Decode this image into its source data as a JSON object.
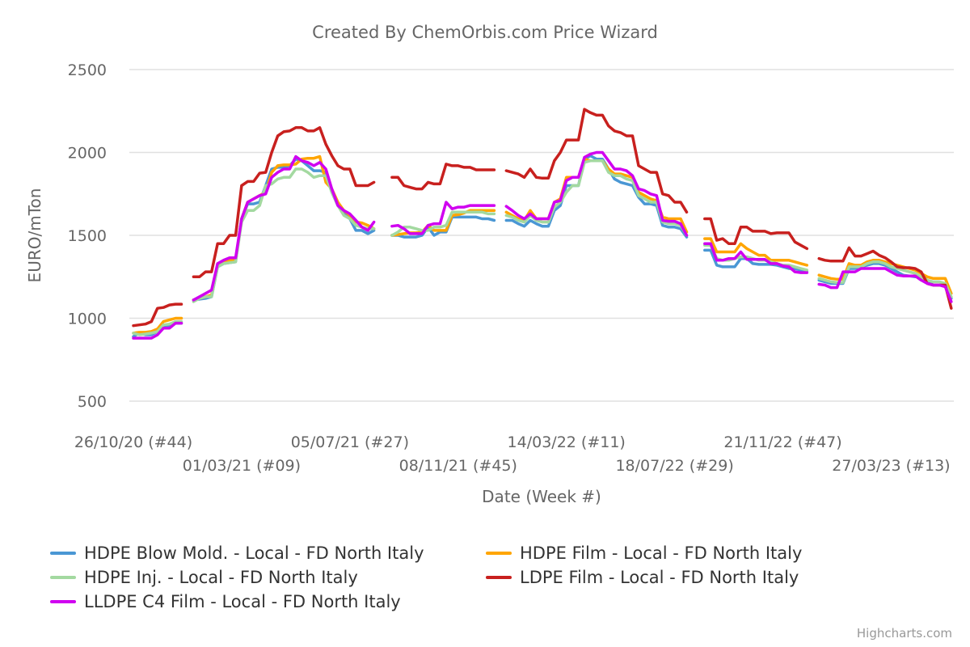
{
  "chart_data": {
    "type": "line",
    "title": "Created By ChemOrbis.com Price Wizard",
    "xlabel": "Date (Week #)",
    "ylabel": "EURO/mTon",
    "ylim": [
      500,
      2500
    ],
    "yticks": [
      500,
      1000,
      1500,
      2000,
      2500
    ],
    "grid": true,
    "x_unit": "weeks since 26/10/20",
    "xlim": [
      0,
      136
    ],
    "xticks": [
      {
        "week": 0,
        "label": "26/10/20 (#44)"
      },
      {
        "week": 18,
        "label": "01/03/21 (#09)"
      },
      {
        "week": 36,
        "label": "05/07/21 (#27)"
      },
      {
        "week": 54,
        "label": "08/11/21 (#45)"
      },
      {
        "week": 72,
        "label": "14/03/22 (#11)"
      },
      {
        "week": 90,
        "label": "18/07/22 (#29)"
      },
      {
        "week": 108,
        "label": "21/11/22 (#47)"
      },
      {
        "week": 126,
        "label": "27/03/23 (#13)"
      }
    ],
    "legend_placement": "bottom",
    "series": [
      {
        "name": "HDPE Blow Mold. - Local - FD North Italy",
        "color": "#4a97d4",
        "segments": [
          {
            "start": 0,
            "values": [
              890,
              910,
              900,
              900,
              920,
              950,
              950,
              970,
              970
            ]
          },
          {
            "start": 10,
            "values": [
              1110,
              1115,
              1120,
              1130,
              1310,
              1330,
              1335,
              1340,
              1600,
              1690,
              1690,
              1700,
              1800,
              1900,
              1910,
              1910,
              1920,
              1960,
              1950,
              1920,
              1890,
              1890,
              1880,
              1760,
              1680,
              1640,
              1600,
              1530,
              1530,
              1510,
              1530
            ]
          },
          {
            "start": 43,
            "values": [
              1500,
              1500,
              1490,
              1490,
              1490,
              1500,
              1550,
              1500,
              1520,
              1520,
              1610,
              1610,
              1610,
              1610,
              1610,
              1600,
              1600,
              1590
            ]
          },
          {
            "start": 62,
            "values": [
              1590,
              1590,
              1570,
              1555,
              1590,
              1570,
              1555,
              1555,
              1650,
              1680,
              1800,
              1800,
              1800,
              1960,
              1980,
              1960,
              1960,
              1900,
              1840,
              1820,
              1810,
              1800,
              1730,
              1690,
              1690,
              1680,
              1560,
              1550,
              1550,
              1540,
              1490
            ]
          },
          {
            "start": 95,
            "values": [
              1410,
              1410,
              1320,
              1310,
              1310,
              1310,
              1360,
              1360,
              1330,
              1325,
              1325,
              1325,
              1320,
              1310,
              1300,
              1300,
              1290,
              1280
            ]
          },
          {
            "start": 114,
            "values": [
              1230,
              1220,
              1210,
              1210,
              1210,
              1300,
              1300,
              1310,
              1320,
              1330,
              1330,
              1320,
              1300,
              1280,
              1260,
              1255,
              1250,
              1250,
              1230,
              1200,
              1200,
              1200,
              1120
            ]
          }
        ]
      },
      {
        "name": "HDPE Film - Local - FD North Italy",
        "color": "#ffa500",
        "segments": [
          {
            "start": 0,
            "values": [
              910,
              915,
              915,
              920,
              935,
              980,
              990,
              1000,
              1000
            ]
          },
          {
            "start": 10,
            "values": [
              1110,
              1120,
              1130,
              1140,
              1330,
              1340,
              1350,
              1350,
              1600,
              1700,
              1720,
              1740,
              1760,
              1880,
              1920,
              1925,
              1925,
              1930,
              1960,
              1965,
              1965,
              1975,
              1820,
              1780,
              1700,
              1650,
              1620,
              1580,
              1575,
              1560,
              1540
            ]
          },
          {
            "start": 43,
            "values": [
              1500,
              1505,
              1510,
              1515,
              1515,
              1520,
              1560,
              1530,
              1530,
              1530,
              1620,
              1625,
              1635,
              1650,
              1650,
              1650,
              1650,
              1650
            ]
          },
          {
            "start": 62,
            "values": [
              1640,
              1620,
              1600,
              1590,
              1650,
              1600,
              1600,
              1600,
              1700,
              1720,
              1850,
              1850,
              1850,
              1960,
              1950,
              1950,
              1950,
              1900,
              1870,
              1870,
              1860,
              1850,
              1760,
              1740,
              1720,
              1710,
              1610,
              1600,
              1600,
              1600,
              1520
            ]
          },
          {
            "start": 95,
            "values": [
              1480,
              1480,
              1400,
              1400,
              1400,
              1400,
              1450,
              1420,
              1400,
              1380,
              1380,
              1350,
              1350,
              1350,
              1350,
              1340,
              1330,
              1320
            ]
          },
          {
            "start": 114,
            "values": [
              1260,
              1250,
              1240,
              1235,
              1235,
              1330,
              1320,
              1320,
              1340,
              1350,
              1350,
              1340,
              1330,
              1320,
              1310,
              1300,
              1290,
              1270,
              1250,
              1240,
              1240,
              1240,
              1150
            ]
          }
        ]
      },
      {
        "name": "HDPE Inj. - Local - FD North Italy",
        "color": "#a3d9a0",
        "segments": [
          {
            "start": 0,
            "values": [
              910,
              900,
              905,
              910,
              920,
              960,
              965,
              980,
              980
            ]
          },
          {
            "start": 10,
            "values": [
              1100,
              1120,
              1130,
              1130,
              1310,
              1330,
              1335,
              1340,
              1580,
              1650,
              1650,
              1680,
              1800,
              1810,
              1840,
              1850,
              1850,
              1900,
              1900,
              1880,
              1850,
              1860,
              1860,
              1760,
              1680,
              1620,
              1600,
              1560,
              1550,
              1540,
              1540
            ]
          },
          {
            "start": 43,
            "values": [
              1500,
              1520,
              1550,
              1550,
              1540,
              1530,
              1530,
              1550,
              1550,
              1560,
              1640,
              1640,
              1640,
              1640,
              1640,
              1640,
              1630,
              1630
            ]
          },
          {
            "start": 62,
            "values": [
              1620,
              1610,
              1590,
              1580,
              1620,
              1590,
              1580,
              1580,
              1670,
              1700,
              1760,
              1800,
              1800,
              1940,
              1950,
              1950,
              1950,
              1880,
              1860,
              1860,
              1840,
              1830,
              1740,
              1720,
              1700,
              1700,
              1580,
              1570,
              1570,
              1560,
              1500
            ]
          },
          {
            "start": 95,
            "values": [
              1440,
              1440,
              1360,
              1350,
              1350,
              1360,
              1370,
              1370,
              1360,
              1350,
              1350,
              1340,
              1330,
              1320,
              1320,
              1310,
              1300,
              1290
            ]
          },
          {
            "start": 114,
            "values": [
              1240,
              1230,
              1220,
              1215,
              1215,
              1310,
              1310,
              1310,
              1330,
              1340,
              1340,
              1330,
              1310,
              1300,
              1290,
              1280,
              1270,
              1250,
              1230,
              1220,
              1220,
              1210,
              1130
            ]
          }
        ]
      },
      {
        "name": "LDPE Film - Local - FD North Italy",
        "color": "#c8201e",
        "segments": [
          {
            "start": 0,
            "values": [
              955,
              960,
              965,
              980,
              1060,
              1065,
              1080,
              1085,
              1085
            ]
          },
          {
            "start": 10,
            "values": [
              1250,
              1250,
              1280,
              1280,
              1450,
              1450,
              1500,
              1500,
              1800,
              1825,
              1825,
              1875,
              1880,
              2000,
              2100,
              2125,
              2130,
              2150,
              2150,
              2130,
              2130,
              2150,
              2050,
              1980,
              1920,
              1900,
              1900,
              1800,
              1800,
              1800,
              1820
            ]
          },
          {
            "start": 43,
            "values": [
              1850,
              1850,
              1800,
              1790,
              1780,
              1780,
              1820,
              1810,
              1810,
              1930,
              1920,
              1920,
              1910,
              1910,
              1895,
              1895,
              1895,
              1895
            ]
          },
          {
            "start": 62,
            "values": [
              1890,
              1880,
              1870,
              1850,
              1900,
              1850,
              1845,
              1845,
              1950,
              2000,
              2075,
              2075,
              2075,
              2260,
              2240,
              2225,
              2225,
              2160,
              2130,
              2120,
              2100,
              2100,
              1920,
              1900,
              1880,
              1880,
              1750,
              1740,
              1700,
              1700,
              1640
            ]
          },
          {
            "start": 95,
            "values": [
              1600,
              1600,
              1470,
              1480,
              1450,
              1450,
              1550,
              1550,
              1525,
              1525,
              1525,
              1510,
              1515,
              1515,
              1515,
              1460,
              1440,
              1420
            ]
          },
          {
            "start": 114,
            "values": [
              1360,
              1350,
              1345,
              1345,
              1345,
              1425,
              1375,
              1375,
              1390,
              1405,
              1380,
              1365,
              1340,
              1310,
              1305,
              1305,
              1300,
              1280,
              1210,
              1200,
              1200,
              1200,
              1060
            ]
          }
        ]
      },
      {
        "name": "LLDPE C4 Film - Local - FD North Italy",
        "color": "#d000f0",
        "segments": [
          {
            "start": 0,
            "values": [
              880,
              880,
              880,
              880,
              900,
              940,
              940,
              970,
              970
            ]
          },
          {
            "start": 10,
            "values": [
              1110,
              1130,
              1150,
              1170,
              1330,
              1350,
              1365,
              1365,
              1600,
              1700,
              1720,
              1740,
              1750,
              1850,
              1880,
              1900,
              1900,
              1975,
              1950,
              1940,
              1920,
              1940,
              1900,
              1780,
              1680,
              1650,
              1630,
              1590,
              1550,
              1530,
              1580
            ]
          },
          {
            "start": 43,
            "values": [
              1555,
              1560,
              1540,
              1510,
              1510,
              1510,
              1560,
              1570,
              1570,
              1700,
              1660,
              1670,
              1670,
              1680,
              1680,
              1680,
              1680,
              1680
            ]
          },
          {
            "start": 62,
            "values": [
              1675,
              1650,
              1620,
              1600,
              1630,
              1600,
              1600,
              1600,
              1700,
              1710,
              1830,
              1850,
              1850,
              1970,
              1990,
              2000,
              2000,
              1950,
              1900,
              1900,
              1890,
              1860,
              1780,
              1770,
              1750,
              1740,
              1590,
              1585,
              1585,
              1570,
              1500
            ]
          },
          {
            "start": 95,
            "values": [
              1450,
              1450,
              1350,
              1350,
              1360,
              1360,
              1400,
              1355,
              1355,
              1355,
              1355,
              1330,
              1330,
              1315,
              1310,
              1280,
              1275,
              1275
            ]
          },
          {
            "start": 114,
            "values": [
              1205,
              1200,
              1185,
              1185,
              1280,
              1280,
              1280,
              1300,
              1300,
              1300,
              1300,
              1300,
              1280,
              1260,
              1255,
              1255,
              1255,
              1230,
              1210,
              1200,
              1200,
              1190,
              1100
            ]
          }
        ]
      }
    ]
  },
  "credits": "Highcharts.com"
}
